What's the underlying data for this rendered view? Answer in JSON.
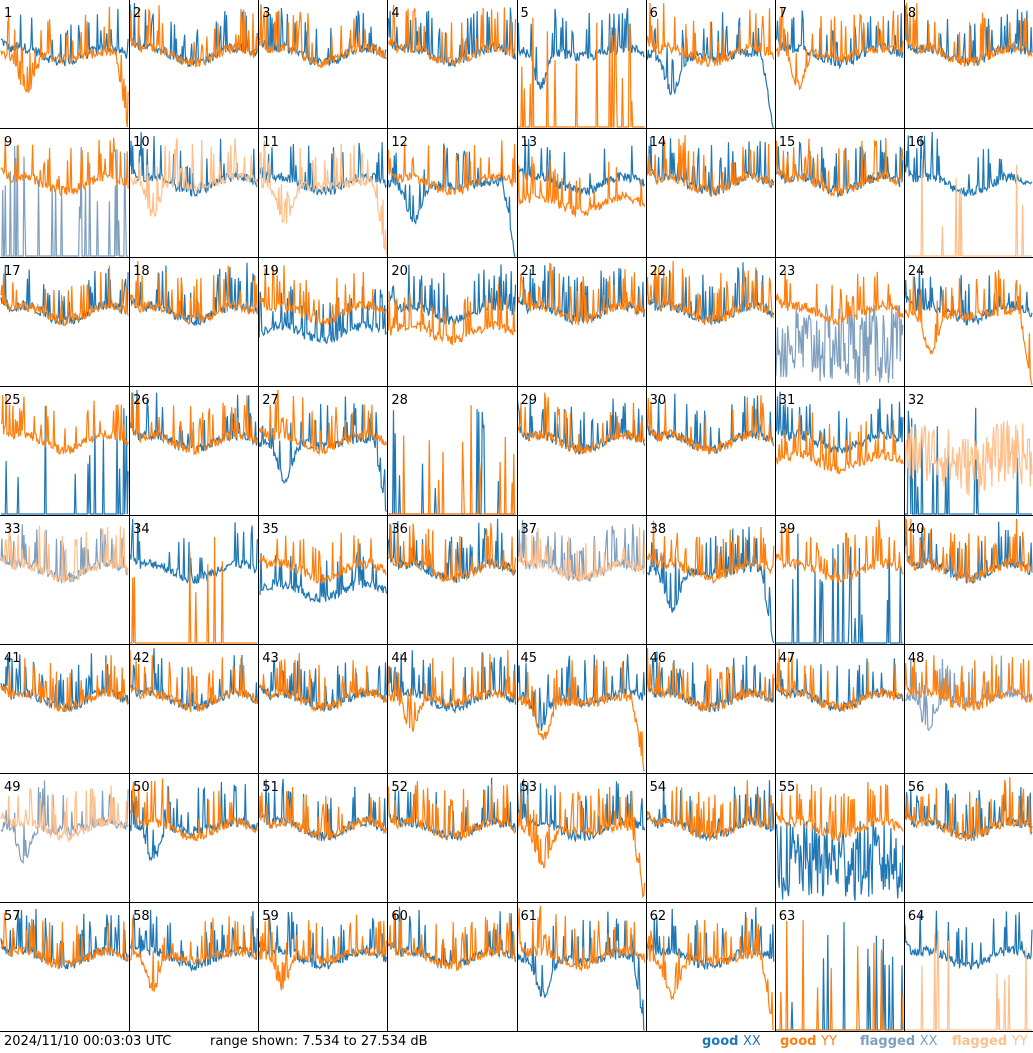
{
  "colors": {
    "good_xx": "#1f77b4",
    "good_yy": "#ff7f0e",
    "flagged_xx": "#7f9fbf",
    "flagged_yy": "#ffbf8a",
    "grid": "#000000"
  },
  "footer": {
    "timestamp": "2024/11/10 00:03:03 UTC",
    "range": "range shown: 7.534 to 27.534 dB",
    "legend": {
      "good": "good",
      "flagged": "flagged",
      "xx": "XX",
      "yy": "YY"
    }
  },
  "chart_data": {
    "type": "line",
    "layout": "8x8 small multiples, one panel per antenna",
    "range_db": [
      7.534,
      27.534
    ],
    "x": "frequency channel (unlabeled)",
    "panels": [
      {
        "id": "1",
        "xx": "good",
        "yy": "good",
        "xx_shape": "flat",
        "yy_shape": "dip-fall"
      },
      {
        "id": "2",
        "xx": "good",
        "yy": "good",
        "xx_shape": "flat",
        "yy_shape": "flat"
      },
      {
        "id": "3",
        "xx": "good",
        "yy": "good",
        "xx_shape": "flat",
        "yy_shape": "flat"
      },
      {
        "id": "4",
        "xx": "good",
        "yy": "good",
        "xx_shape": "flat",
        "yy_shape": "flat"
      },
      {
        "id": "5",
        "xx": "good",
        "yy": "good",
        "xx_shape": "dip",
        "yy_shape": "spiky-low"
      },
      {
        "id": "6",
        "xx": "good",
        "yy": "good",
        "xx_shape": "dip-fall",
        "yy_shape": "flat"
      },
      {
        "id": "7",
        "xx": "good",
        "yy": "good",
        "xx_shape": "flat",
        "yy_shape": "dip"
      },
      {
        "id": "8",
        "xx": "good",
        "yy": "good",
        "xx_shape": "flat",
        "yy_shape": "flat"
      },
      {
        "id": "9",
        "xx": "flagged",
        "yy": "good",
        "xx_shape": "spiky-low",
        "yy_shape": "flat"
      },
      {
        "id": "10",
        "xx": "good",
        "yy": "flagged",
        "xx_shape": "flat",
        "yy_shape": "dip"
      },
      {
        "id": "11",
        "xx": "good",
        "yy": "flagged",
        "xx_shape": "flat",
        "yy_shape": "dip-fall"
      },
      {
        "id": "12",
        "xx": "good",
        "yy": "good",
        "xx_shape": "dip-fall",
        "yy_shape": "flat"
      },
      {
        "id": "13",
        "xx": "good",
        "yy": "good",
        "xx_shape": "flat",
        "yy_shape": "low"
      },
      {
        "id": "14",
        "xx": "good",
        "yy": "good",
        "xx_shape": "flat",
        "yy_shape": "flat"
      },
      {
        "id": "15",
        "xx": "good",
        "yy": "good",
        "xx_shape": "flat",
        "yy_shape": "flat"
      },
      {
        "id": "16",
        "xx": "good",
        "yy": "flagged",
        "xx_shape": "flat",
        "yy_shape": "spiky-low"
      },
      {
        "id": "17",
        "xx": "good",
        "yy": "good",
        "xx_shape": "flat",
        "yy_shape": "flat"
      },
      {
        "id": "18",
        "xx": "good",
        "yy": "good",
        "xx_shape": "flat",
        "yy_shape": "flat"
      },
      {
        "id": "19",
        "xx": "good",
        "yy": "good",
        "xx_shape": "low",
        "yy_shape": "flat"
      },
      {
        "id": "20",
        "xx": "good",
        "yy": "good",
        "xx_shape": "flat",
        "yy_shape": "low"
      },
      {
        "id": "21",
        "xx": "good",
        "yy": "good",
        "xx_shape": "flat",
        "yy_shape": "flat"
      },
      {
        "id": "22",
        "xx": "good",
        "yy": "good",
        "xx_shape": "flat",
        "yy_shape": "flat"
      },
      {
        "id": "23",
        "xx": "flagged",
        "yy": "good",
        "xx_shape": "noisy-low",
        "yy_shape": "flat"
      },
      {
        "id": "24",
        "xx": "good",
        "yy": "good",
        "xx_shape": "flat",
        "yy_shape": "dip-fall"
      },
      {
        "id": "25",
        "xx": "good",
        "yy": "good",
        "xx_shape": "spiky-low",
        "yy_shape": "flat"
      },
      {
        "id": "26",
        "xx": "good",
        "yy": "good",
        "xx_shape": "flat",
        "yy_shape": "flat"
      },
      {
        "id": "27",
        "xx": "good",
        "yy": "good",
        "xx_shape": "dip-fall",
        "yy_shape": "flat"
      },
      {
        "id": "28",
        "xx": "good",
        "yy": "good",
        "xx_shape": "spiky-low",
        "yy_shape": "spiky-low"
      },
      {
        "id": "29",
        "xx": "good",
        "yy": "good",
        "xx_shape": "flat",
        "yy_shape": "flat"
      },
      {
        "id": "30",
        "xx": "good",
        "yy": "good",
        "xx_shape": "flat",
        "yy_shape": "flat"
      },
      {
        "id": "31",
        "xx": "good",
        "yy": "good",
        "xx_shape": "flat",
        "yy_shape": "low"
      },
      {
        "id": "32",
        "xx": "good",
        "yy": "flagged",
        "xx_shape": "spiky-low",
        "yy_shape": "noisy"
      },
      {
        "id": "33",
        "xx": "flagged",
        "yy": "flagged",
        "xx_shape": "flat",
        "yy_shape": "flat"
      },
      {
        "id": "34",
        "xx": "good",
        "yy": "good",
        "xx_shape": "flat",
        "yy_shape": "spiky-low"
      },
      {
        "id": "35",
        "xx": "good",
        "yy": "good",
        "xx_shape": "low",
        "yy_shape": "flat"
      },
      {
        "id": "36",
        "xx": "good",
        "yy": "good",
        "xx_shape": "flat",
        "yy_shape": "flat"
      },
      {
        "id": "37",
        "xx": "flagged",
        "yy": "flagged",
        "xx_shape": "flat",
        "yy_shape": "flat"
      },
      {
        "id": "38",
        "xx": "good",
        "yy": "good",
        "xx_shape": "dip-fall",
        "yy_shape": "flat"
      },
      {
        "id": "39",
        "xx": "good",
        "yy": "good",
        "xx_shape": "spiky-low",
        "yy_shape": "flat"
      },
      {
        "id": "40",
        "xx": "good",
        "yy": "good",
        "xx_shape": "flat",
        "yy_shape": "flat"
      },
      {
        "id": "41",
        "xx": "good",
        "yy": "good",
        "xx_shape": "flat",
        "yy_shape": "flat"
      },
      {
        "id": "42",
        "xx": "good",
        "yy": "good",
        "xx_shape": "flat",
        "yy_shape": "flat"
      },
      {
        "id": "43",
        "xx": "good",
        "yy": "good",
        "xx_shape": "flat",
        "yy_shape": "flat"
      },
      {
        "id": "44",
        "xx": "good",
        "yy": "good",
        "xx_shape": "flat",
        "yy_shape": "dip"
      },
      {
        "id": "45",
        "xx": "good",
        "yy": "good",
        "xx_shape": "dip",
        "yy_shape": "dip-fall"
      },
      {
        "id": "46",
        "xx": "good",
        "yy": "good",
        "xx_shape": "flat",
        "yy_shape": "flat"
      },
      {
        "id": "47",
        "xx": "good",
        "yy": "good",
        "xx_shape": "flat",
        "yy_shape": "flat"
      },
      {
        "id": "48",
        "xx": "flagged",
        "yy": "good",
        "xx_shape": "dip",
        "yy_shape": "flat"
      },
      {
        "id": "49",
        "xx": "flagged",
        "yy": "flagged",
        "xx_shape": "dip",
        "yy_shape": "flat"
      },
      {
        "id": "50",
        "xx": "good",
        "yy": "good",
        "xx_shape": "dip",
        "yy_shape": "flat"
      },
      {
        "id": "51",
        "xx": "good",
        "yy": "good",
        "xx_shape": "flat",
        "yy_shape": "flat"
      },
      {
        "id": "52",
        "xx": "good",
        "yy": "good",
        "xx_shape": "flat",
        "yy_shape": "flat"
      },
      {
        "id": "53",
        "xx": "good",
        "yy": "good",
        "xx_shape": "flat",
        "yy_shape": "dip-fall"
      },
      {
        "id": "54",
        "xx": "good",
        "yy": "good",
        "xx_shape": "flat",
        "yy_shape": "flat"
      },
      {
        "id": "55",
        "xx": "good",
        "yy": "good",
        "xx_shape": "noisy-low",
        "yy_shape": "flat"
      },
      {
        "id": "56",
        "xx": "good",
        "yy": "good",
        "xx_shape": "flat",
        "yy_shape": "flat"
      },
      {
        "id": "57",
        "xx": "good",
        "yy": "good",
        "xx_shape": "flat",
        "yy_shape": "flat"
      },
      {
        "id": "58",
        "xx": "good",
        "yy": "good",
        "xx_shape": "flat",
        "yy_shape": "dip"
      },
      {
        "id": "59",
        "xx": "good",
        "yy": "good",
        "xx_shape": "flat",
        "yy_shape": "dip"
      },
      {
        "id": "60",
        "xx": "good",
        "yy": "good",
        "xx_shape": "flat",
        "yy_shape": "flat"
      },
      {
        "id": "61",
        "xx": "good",
        "yy": "good",
        "xx_shape": "dip-fall",
        "yy_shape": "flat"
      },
      {
        "id": "62",
        "xx": "good",
        "yy": "good",
        "xx_shape": "flat",
        "yy_shape": "dip-fall"
      },
      {
        "id": "63",
        "xx": "good",
        "yy": "good",
        "xx_shape": "spiky-low",
        "yy_shape": "spiky-low"
      },
      {
        "id": "64",
        "xx": "good",
        "yy": "flagged",
        "xx_shape": "flat",
        "yy_shape": "spiky-low"
      }
    ]
  }
}
